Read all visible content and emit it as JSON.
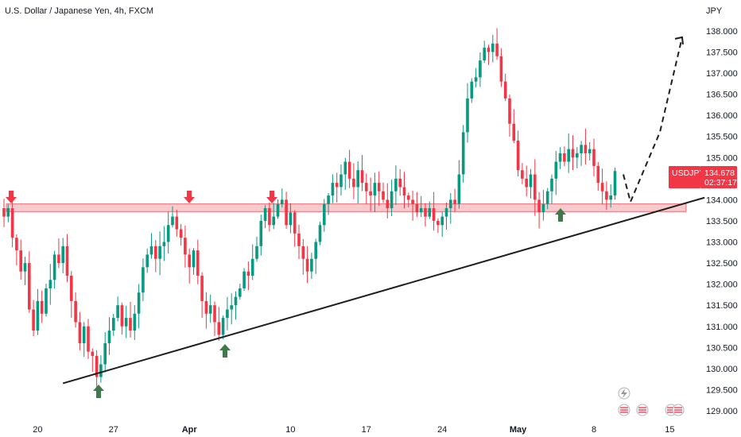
{
  "chart_data": {
    "type": "candlestick",
    "title": "U.S. Dollar / Japanese Yen, 4h, FXCM",
    "currency": "JPY",
    "symbol": "USDJPY",
    "last_price": "134.678",
    "countdown": "02:37:17",
    "ylim": [
      128.9,
      138.45
    ],
    "y_ticks": [
      {
        "value": 138.0,
        "label": "138.000"
      },
      {
        "value": 137.5,
        "label": "137.500"
      },
      {
        "value": 137.0,
        "label": "137.000"
      },
      {
        "value": 136.5,
        "label": "136.500"
      },
      {
        "value": 136.0,
        "label": "136.000"
      },
      {
        "value": 135.5,
        "label": "135.500"
      },
      {
        "value": 135.0,
        "label": "135.000"
      },
      {
        "value": 134.0,
        "label": "134.000"
      },
      {
        "value": 133.5,
        "label": "133.500"
      },
      {
        "value": 133.0,
        "label": "133.000"
      },
      {
        "value": 132.5,
        "label": "132.500"
      },
      {
        "value": 132.0,
        "label": "132.000"
      },
      {
        "value": 131.5,
        "label": "131.500"
      },
      {
        "value": 131.0,
        "label": "131.000"
      },
      {
        "value": 130.5,
        "label": "130.500"
      },
      {
        "value": 130.0,
        "label": "130.000"
      },
      {
        "value": 129.5,
        "label": "129.500"
      },
      {
        "value": 129.0,
        "label": "129.000"
      }
    ],
    "x_ticks": [
      {
        "label": "20",
        "bold": false,
        "index": 8
      },
      {
        "label": "27",
        "bold": false,
        "index": 26
      },
      {
        "label": "Apr",
        "bold": true,
        "index": 44
      },
      {
        "label": "10",
        "bold": false,
        "index": 68
      },
      {
        "label": "17",
        "bold": false,
        "index": 86
      },
      {
        "label": "24",
        "bold": false,
        "index": 104
      },
      {
        "label": "May",
        "bold": true,
        "index": 122
      },
      {
        "label": "8",
        "bold": false,
        "index": 140
      },
      {
        "label": "15",
        "bold": false,
        "index": 158
      }
    ],
    "colors": {
      "up": "#089981",
      "down": "#f23645",
      "resistance_fill": "#f7c5c8",
      "resistance_stroke": "#f23645",
      "trendline": "#1e1e1e",
      "arrow_down": "#f23645",
      "arrow_up": "#3e7a4c",
      "label_bg": "#f23645"
    },
    "close_points": [
      133.6,
      133.8,
      133.1,
      132.8,
      132.3,
      132.5,
      131.4,
      130.9,
      131.6,
      131.3,
      131.9,
      132.1,
      132.7,
      132.5,
      132.9,
      132.2,
      131.6,
      131.1,
      130.6,
      131.0,
      130.4,
      130.3,
      129.8,
      130.1,
      130.6,
      130.9,
      131.2,
      131.5,
      131.0,
      131.2,
      130.9,
      131.3,
      131.8,
      132.4,
      132.7,
      132.9,
      132.6,
      132.9,
      133.0,
      133.4,
      133.6,
      133.3,
      133.1,
      132.7,
      132.4,
      132.8,
      132.2,
      131.6,
      131.3,
      131.5,
      131.1,
      130.8,
      131.2,
      131.4,
      131.5,
      131.7,
      131.9,
      132.3,
      132.2,
      132.6,
      132.9,
      133.5,
      133.8,
      133.4,
      133.6,
      133.9,
      134.0,
      133.4,
      133.7,
      133.2,
      132.9,
      132.6,
      132.3,
      132.6,
      133.0,
      133.4,
      133.9,
      134.1,
      134.4,
      134.3,
      134.6,
      134.9,
      134.5,
      134.3,
      134.7,
      134.4,
      134.2,
      134.1,
      134.4,
      134.2,
      134.0,
      133.8,
      134.2,
      134.5,
      134.3,
      134.1,
      134.0,
      133.9,
      133.7,
      133.8,
      133.6,
      133.8,
      133.5,
      133.4,
      133.6,
      133.8,
      134.0,
      133.9,
      134.6,
      135.6,
      136.4,
      136.8,
      136.9,
      137.3,
      137.6,
      137.5,
      137.7,
      137.4,
      136.8,
      136.4,
      135.8,
      135.4,
      134.7,
      134.5,
      134.3,
      134.6,
      134.0,
      133.7,
      133.9,
      134.2,
      134.5,
      134.9,
      135.1,
      134.9,
      135.2,
      135.0,
      135.1,
      135.3,
      135.1,
      135.2,
      134.8,
      134.4,
      134.2,
      134.0,
      134.1,
      134.68
    ],
    "resistance_zone": {
      "low": 133.72,
      "high": 133.9
    },
    "trendline": {
      "start": {
        "index": 14,
        "value": 129.65
      },
      "end": {
        "index": 190,
        "value": 134.05
      }
    },
    "projection": [
      {
        "index": 151,
        "value": 134.6
      },
      {
        "index": 153,
        "value": 133.95
      },
      {
        "index": 163,
        "value": 135.6
      },
      {
        "index": 170,
        "value": 137.85
      }
    ],
    "down_arrows": [
      {
        "index": 1,
        "value": 134.2
      },
      {
        "index": 27,
        "value": 134.2
      },
      {
        "index": 38,
        "value": 134.2
      }
    ],
    "up_arrows": [
      {
        "index": 14,
        "value": 129.5
      },
      {
        "index": 31,
        "value": 130.5
      },
      {
        "index": 80,
        "value": 133.6
      }
    ]
  }
}
